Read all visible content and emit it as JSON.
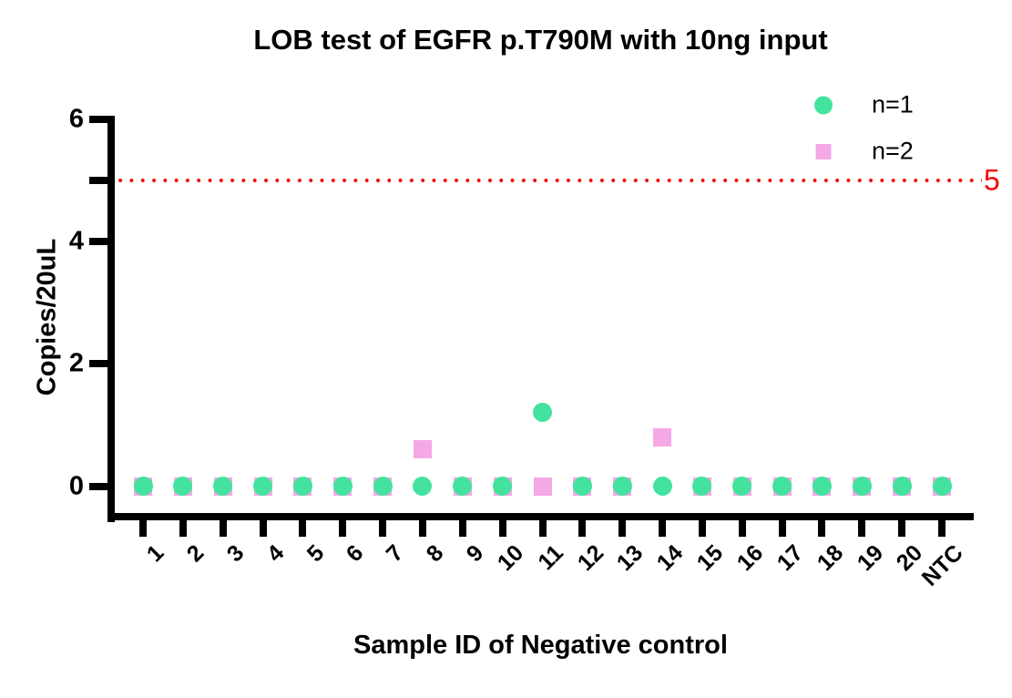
{
  "chart_data": {
    "type": "scatter",
    "title": "LOB test of EGFR p.T790M with 10ng input",
    "xlabel": "Sample ID of Negative control",
    "ylabel": "Copies/20uL",
    "categories": [
      "1",
      "2",
      "3",
      "4",
      "5",
      "6",
      "7",
      "8",
      "9",
      "10",
      "11",
      "12",
      "13",
      "14",
      "15",
      "16",
      "17",
      "18",
      "19",
      "20",
      "NTC"
    ],
    "series": [
      {
        "name": "n=1",
        "marker": "circle",
        "color": "#43E39F",
        "values": [
          0,
          0,
          0,
          0,
          0,
          0,
          0,
          0,
          0,
          0,
          1.2,
          0,
          0,
          0,
          0,
          0,
          0,
          0,
          0,
          0,
          0
        ]
      },
      {
        "name": "n=2",
        "marker": "square",
        "color": "#F5A8E6",
        "values": [
          0,
          0,
          0,
          0,
          0,
          0,
          0,
          0.6,
          0,
          0,
          0,
          0,
          0,
          0.8,
          0,
          0,
          0,
          0,
          0,
          0,
          0
        ]
      }
    ],
    "yticks": [
      {
        "value": 0,
        "label": "0"
      },
      {
        "value": 2,
        "label": "2"
      },
      {
        "value": 4,
        "label": "4"
      },
      {
        "value": 5,
        "label": ""
      },
      {
        "value": 6,
        "label": "6"
      }
    ],
    "ylim": [
      0,
      6
    ],
    "grid": false,
    "legend_position": "top-right",
    "cutoff_line": {
      "y": 5,
      "label": "5",
      "color": "#F40000",
      "style": "dotted"
    },
    "axis_color": "#000000",
    "text_color": "#000000"
  }
}
